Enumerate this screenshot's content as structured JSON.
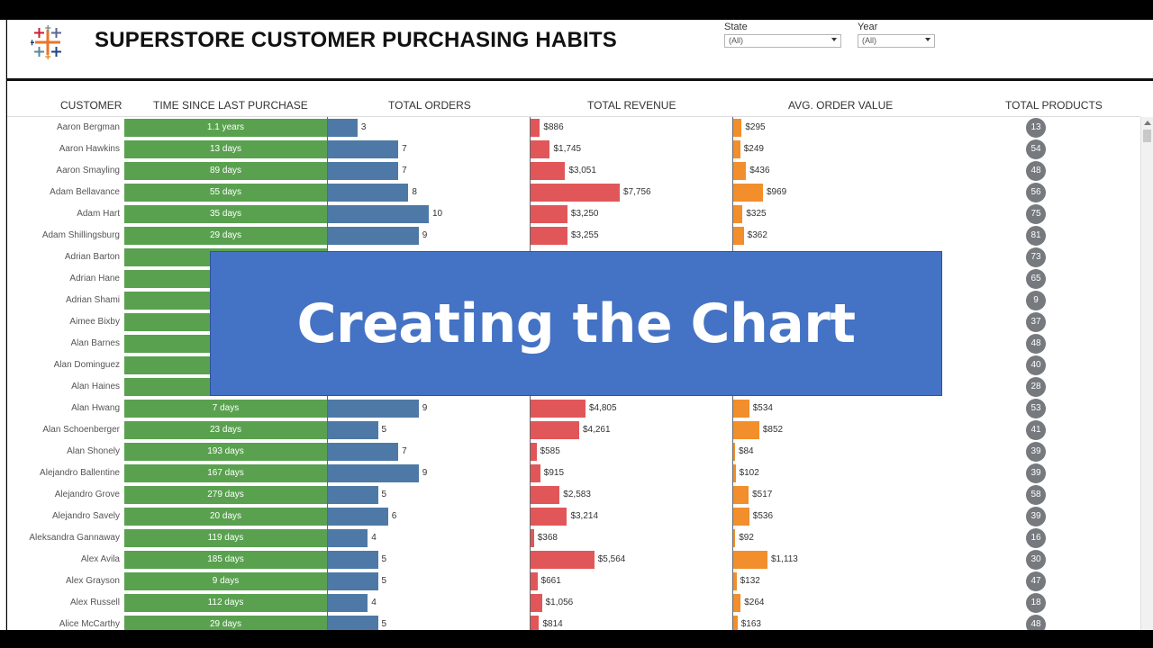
{
  "header": {
    "title": "SUPERSTORE CUSTOMER PURCHASING HABITS",
    "filters": [
      {
        "label": "State",
        "value": "(All)"
      },
      {
        "label": "Year",
        "value": "(All)"
      }
    ]
  },
  "columns": {
    "customer": "CUSTOMER",
    "time_since": "TIME SINCE LAST PURCHASE",
    "orders": "TOTAL ORDERS",
    "revenue": "TOTAL REVENUE",
    "aov": "AVG. ORDER VALUE",
    "products": "TOTAL PRODUCTS"
  },
  "overlay": {
    "text": "Creating the Chart"
  },
  "colors": {
    "time": "#59a14f",
    "orders": "#4e79a7",
    "revenue": "#e15759",
    "aov": "#f28e2b",
    "products": "#76797e",
    "overlay": "#4472c4"
  },
  "chart_data": {
    "type": "table",
    "rows": [
      {
        "customer": "Aaron Bergman",
        "time_since": "1.1 years",
        "orders": 3,
        "revenue": "$886",
        "aov": "$295",
        "products": 13
      },
      {
        "customer": "Aaron Hawkins",
        "time_since": "13 days",
        "orders": 7,
        "revenue": "$1,745",
        "aov": "$249",
        "products": 54
      },
      {
        "customer": "Aaron Smayling",
        "time_since": "89 days",
        "orders": 7,
        "revenue": "$3,051",
        "aov": "$436",
        "products": 48
      },
      {
        "customer": "Adam Bellavance",
        "time_since": "55 days",
        "orders": 8,
        "revenue": "$7,756",
        "aov": "$969",
        "products": 56
      },
      {
        "customer": "Adam Hart",
        "time_since": "35 days",
        "orders": 10,
        "revenue": "$3,250",
        "aov": "$325",
        "products": 75
      },
      {
        "customer": "Adam Shillingsburg",
        "time_since": "29 days",
        "orders": 9,
        "revenue": "$3,255",
        "aov": "$362",
        "products": 81
      },
      {
        "customer": "Adrian Barton",
        "time_since": "",
        "orders": null,
        "revenue": "",
        "aov": "",
        "products": 73
      },
      {
        "customer": "Adrian Hane",
        "time_since": "",
        "orders": null,
        "revenue": "",
        "aov": "",
        "products": 65
      },
      {
        "customer": "Adrian Shami",
        "time_since": "",
        "orders": null,
        "revenue": "",
        "aov": "",
        "products": 9
      },
      {
        "customer": "Aimee Bixby",
        "time_since": "",
        "orders": null,
        "revenue": "",
        "aov": "",
        "products": 37
      },
      {
        "customer": "Alan Barnes",
        "time_since": "",
        "orders": null,
        "revenue": "",
        "aov": "",
        "products": 48
      },
      {
        "customer": "Alan Dominguez",
        "time_since": "",
        "orders": null,
        "revenue": "",
        "aov": "",
        "products": 40
      },
      {
        "customer": "Alan Haines",
        "time_since": "",
        "orders": null,
        "revenue": "",
        "aov": "",
        "products": 28
      },
      {
        "customer": "Alan Hwang",
        "time_since": "7 days",
        "orders": 9,
        "revenue": "$4,805",
        "aov": "$534",
        "products": 53
      },
      {
        "customer": "Alan Schoenberger",
        "time_since": "23 days",
        "orders": 5,
        "revenue": "$4,261",
        "aov": "$852",
        "products": 41
      },
      {
        "customer": "Alan Shonely",
        "time_since": "193 days",
        "orders": 7,
        "revenue": "$585",
        "aov": "$84",
        "products": 39
      },
      {
        "customer": "Alejandro Ballentine",
        "time_since": "167 days",
        "orders": 9,
        "revenue": "$915",
        "aov": "$102",
        "products": 39
      },
      {
        "customer": "Alejandro Grove",
        "time_since": "279 days",
        "orders": 5,
        "revenue": "$2,583",
        "aov": "$517",
        "products": 58
      },
      {
        "customer": "Alejandro Savely",
        "time_since": "20 days",
        "orders": 6,
        "revenue": "$3,214",
        "aov": "$536",
        "products": 39
      },
      {
        "customer": "Aleksandra Gannaway",
        "time_since": "119 days",
        "orders": 4,
        "revenue": "$368",
        "aov": "$92",
        "products": 16
      },
      {
        "customer": "Alex Avila",
        "time_since": "185 days",
        "orders": 5,
        "revenue": "$5,564",
        "aov": "$1,113",
        "products": 30
      },
      {
        "customer": "Alex Grayson",
        "time_since": "9 days",
        "orders": 5,
        "revenue": "$661",
        "aov": "$132",
        "products": 47
      },
      {
        "customer": "Alex Russell",
        "time_since": "112 days",
        "orders": 4,
        "revenue": "$1,056",
        "aov": "$264",
        "products": 18
      },
      {
        "customer": "Alice McCarthy",
        "time_since": "29 days",
        "orders": 5,
        "revenue": "$814",
        "aov": "$163",
        "products": 48
      }
    ]
  }
}
